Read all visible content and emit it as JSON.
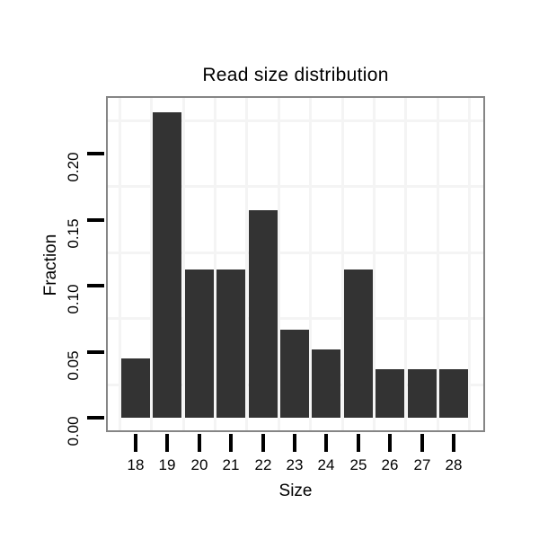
{
  "chart_data": {
    "type": "bar",
    "title": "Read size distribution",
    "xlabel": "Size",
    "ylabel": "Fraction",
    "categories": [
      "18",
      "19",
      "20",
      "21",
      "22",
      "23",
      "24",
      "25",
      "26",
      "27",
      "28"
    ],
    "values": [
      0.045,
      0.231,
      0.112,
      0.112,
      0.157,
      0.067,
      0.052,
      0.112,
      0.037,
      0.037,
      0.037
    ],
    "ylim": [
      -0.012,
      0.243
    ],
    "yticks": [
      0,
      0.05,
      0.1,
      0.15,
      0.2
    ],
    "ytick_labels": [
      "0.00",
      "0.05",
      "0.10",
      "0.15",
      "0.20"
    ],
    "grid_y_minor_values": [
      0.025,
      0.075,
      0.125,
      0.175,
      0.225
    ],
    "grid_x": "between-categories",
    "legend": "none",
    "colors": {
      "bar": "#333333",
      "page_background": "#ffffff",
      "panel_background": "#ffffff",
      "panel_border": "#858585",
      "grid": "#f4f4f4",
      "tick": "#000000",
      "text": "#000000"
    }
  }
}
